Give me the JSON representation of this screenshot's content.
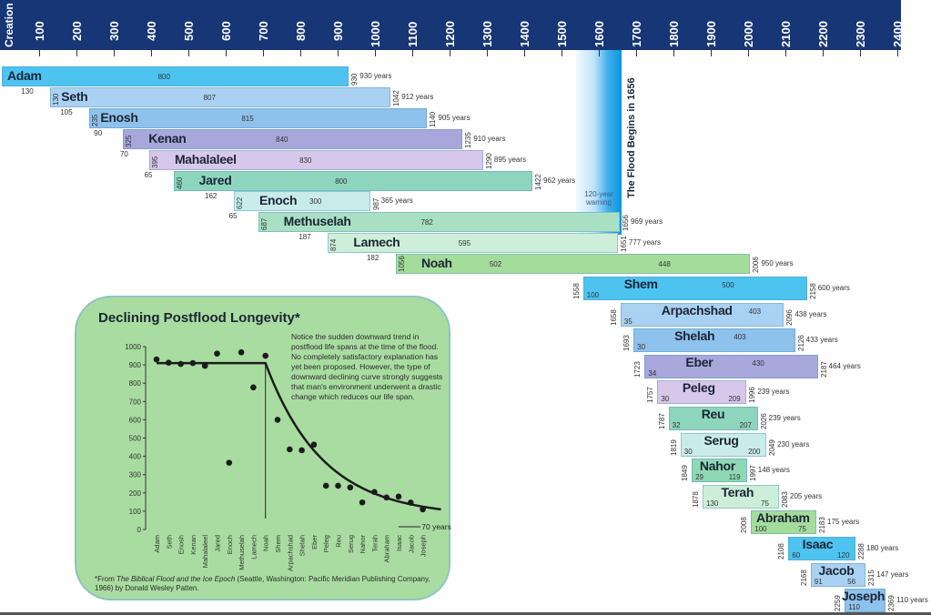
{
  "axis": {
    "start_label": "Creation",
    "ticks": [
      "100",
      "200",
      "300",
      "400",
      "500",
      "600",
      "700",
      "800",
      "900",
      "1000",
      "1100",
      "1200",
      "1300",
      "1400",
      "1500",
      "1600",
      "1700",
      "1800",
      "1900",
      "2000",
      "2100",
      "2200",
      "2300",
      "2400"
    ],
    "color": "#173676"
  },
  "flood": {
    "label": "The Flood Begins in 1656",
    "warning": "120-year warning",
    "year": 1656
  },
  "chart_data": {
    "type": "bar",
    "subtype": "timeline",
    "x_axis": "year from Creation",
    "xlim": [
      0,
      2400
    ],
    "persons": [
      {
        "name": "Adam",
        "birth": 0,
        "death": 930,
        "begat_age": 130,
        "remaining": 800,
        "lifespan": "930 years",
        "color": "#4dc3f0"
      },
      {
        "name": "Seth",
        "birth": 130,
        "death": 1042,
        "begat_age": 105,
        "remaining": 807,
        "lifespan": "912 years",
        "color": "#a9d1f1"
      },
      {
        "name": "Enosh",
        "birth": 235,
        "death": 1140,
        "begat_age": 90,
        "remaining": 815,
        "lifespan": "905 years",
        "color": "#8ec1ec"
      },
      {
        "name": "Kenan",
        "birth": 325,
        "death": 1235,
        "begat_age": 70,
        "remaining": 840,
        "lifespan": "910 years",
        "color": "#a7a7dc"
      },
      {
        "name": "Mahalaleel",
        "birth": 395,
        "death": 1290,
        "begat_age": 65,
        "remaining": 830,
        "lifespan": "895 years",
        "color": "#d7c7ea"
      },
      {
        "name": "Jared",
        "birth": 460,
        "death": 1422,
        "begat_age": 162,
        "remaining": 800,
        "lifespan": "962 years",
        "color": "#8dd6bd"
      },
      {
        "name": "Enoch",
        "birth": 622,
        "death": 987,
        "begat_age": 65,
        "remaining": 300,
        "lifespan": "365 years",
        "color": "#c9ecea"
      },
      {
        "name": "Methuselah",
        "birth": 687,
        "death": 1656,
        "begat_age": 187,
        "remaining": 782,
        "lifespan": "969 years",
        "color": "#a9e0c4"
      },
      {
        "name": "Lamech",
        "birth": 874,
        "death": 1651,
        "begat_age": 182,
        "remaining": 595,
        "lifespan": "777 years",
        "color": "#cdeed8"
      },
      {
        "name": "Noah",
        "birth": 1056,
        "death": 2006,
        "begat_age": 502,
        "remaining": 448,
        "lifespan": "950 years",
        "color": "#a4dc9c"
      },
      {
        "name": "Shem",
        "birth": 1558,
        "death": 2158,
        "begat_age": 100,
        "remaining": 500,
        "lifespan": "600 years",
        "color": "#4dc3f0"
      },
      {
        "name": "Arpachshad",
        "birth": 1658,
        "death": 2096,
        "begat_age": 35,
        "remaining": 403,
        "lifespan": "438 years",
        "color": "#a9d1f1"
      },
      {
        "name": "Shelah",
        "birth": 1693,
        "death": 2126,
        "begat_age": 30,
        "remaining": 403,
        "lifespan": "433 years",
        "color": "#8ec1ec"
      },
      {
        "name": "Eber",
        "birth": 1723,
        "death": 2187,
        "begat_age": 34,
        "remaining": 430,
        "lifespan": "464 years",
        "color": "#a7a7dc"
      },
      {
        "name": "Peleg",
        "birth": 1757,
        "death": 1996,
        "begat_age": 30,
        "remaining": 209,
        "lifespan": "239 years",
        "color": "#d7c7ea"
      },
      {
        "name": "Reu",
        "birth": 1787,
        "death": 2026,
        "begat_age": 32,
        "remaining": 207,
        "lifespan": "239 years",
        "color": "#8dd6bd"
      },
      {
        "name": "Serug",
        "birth": 1819,
        "death": 2049,
        "begat_age": 30,
        "remaining": 200,
        "lifespan": "230 years",
        "color": "#c9ecea"
      },
      {
        "name": "Nahor",
        "birth": 1849,
        "death": 1997,
        "begat_age": 29,
        "remaining": 119,
        "lifespan": "148 years",
        "color": "#8fd8b4"
      },
      {
        "name": "Terah",
        "birth": 1878,
        "death": 2083,
        "begat_age": 130,
        "remaining": 75,
        "lifespan": "205 years",
        "color": "#cdeed8"
      },
      {
        "name": "Abraham",
        "birth": 2008,
        "death": 2183,
        "begat_age": 100,
        "remaining": 75,
        "lifespan": "175 years",
        "color": "#a4dc9c"
      },
      {
        "name": "Isaac",
        "birth": 2108,
        "death": 2288,
        "begat_age": 60,
        "remaining": 120,
        "lifespan": "180 years",
        "color": "#4dc3f0"
      },
      {
        "name": "Jacob",
        "birth": 2168,
        "death": 2315,
        "begat_age": 91,
        "remaining": 56,
        "lifespan": "147 years",
        "color": "#a9d1f1"
      },
      {
        "name": "Joseph",
        "birth": 2259,
        "death": 2369,
        "begat_age": 110,
        "remaining": null,
        "lifespan": "110 years",
        "color": "#8ec1ec"
      }
    ],
    "inset": {
      "type": "scatter",
      "title": "Declining Postflood Longevity*",
      "note": "Notice the sudden downward trend in postflood life spans at the time of the flood. No completely satisfactory explanation has yet been proposed.  However, the type of downward declining curve strongly suggests that man's environment underwent a drastic change which reduces our life span.",
      "citation_prefix": "*From ",
      "citation_title": "The Biblical Flood and the Ice Epoch",
      "citation_rest": " (Seattle, Washington:  Pacific Meridian Publishing Company, 1966) by Donald Wesley Patten.",
      "asymptote_label": "70 years",
      "ylim": [
        0,
        1000
      ],
      "yticks": [
        "0",
        "100",
        "200",
        "300",
        "400",
        "500",
        "600",
        "700",
        "800",
        "900",
        "1000"
      ],
      "categories": [
        "Adam",
        "Seth",
        "Enosh",
        "Kenan",
        "Mahalaleel",
        "Jared",
        "Enoch",
        "Methuselah",
        "Lamech",
        "Noah",
        "Shem",
        "Arpachshad",
        "Shelah",
        "Eber",
        "Peleg",
        "Reu",
        "Serug",
        "Nahor",
        "Terah",
        "Abraham",
        "Isaac",
        "Jacob",
        "Joseph"
      ],
      "values": [
        930,
        912,
        905,
        910,
        895,
        962,
        365,
        969,
        777,
        950,
        600,
        438,
        433,
        464,
        239,
        239,
        230,
        148,
        205,
        175,
        180,
        147,
        110
      ],
      "background": "#a9dca1"
    }
  }
}
